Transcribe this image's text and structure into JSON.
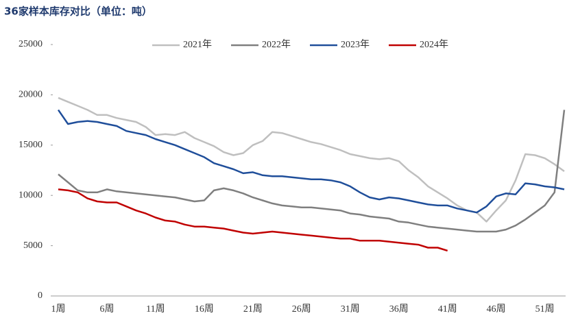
{
  "chart_data": {
    "type": "line",
    "title": "36家样本库存对比（单位：吨）",
    "categories": [
      "1周",
      null,
      null,
      null,
      null,
      "6周",
      null,
      null,
      null,
      null,
      "11周",
      null,
      null,
      null,
      null,
      "16周",
      null,
      null,
      null,
      null,
      "21周",
      null,
      null,
      null,
      null,
      "26周",
      null,
      null,
      null,
      null,
      "31周",
      null,
      null,
      null,
      null,
      "36周",
      null,
      null,
      null,
      null,
      "41周",
      null,
      null,
      null,
      null,
      "46周",
      null,
      null,
      null,
      null,
      "51周",
      null,
      null
    ],
    "series": [
      {
        "name": "2021年",
        "color": "#bfbfbf",
        "values": [
          19700,
          19300,
          18900,
          18500,
          18000,
          18000,
          17700,
          17500,
          17300,
          16800,
          16000,
          16100,
          16000,
          16300,
          15700,
          15300,
          14900,
          14300,
          14000,
          14200,
          15000,
          15400,
          16300,
          16200,
          15900,
          15600,
          15300,
          15100,
          14800,
          14500,
          14100,
          13900,
          13700,
          13600,
          13700,
          13400,
          12500,
          11800,
          10900,
          10300,
          9700,
          9000,
          8500,
          8300,
          7400,
          8500,
          9500,
          11500,
          14100,
          14000,
          13700,
          13100,
          12400
        ]
      },
      {
        "name": "2022年",
        "color": "#7f7f7f",
        "values": [
          12100,
          11300,
          10500,
          10300,
          10300,
          10600,
          10400,
          10300,
          10200,
          10100,
          10000,
          9900,
          9800,
          9600,
          9400,
          9500,
          10500,
          10700,
          10500,
          10200,
          9800,
          9500,
          9200,
          9000,
          8900,
          8800,
          8800,
          8700,
          8600,
          8500,
          8200,
          8100,
          7900,
          7800,
          7700,
          7400,
          7300,
          7100,
          6900,
          6800,
          6700,
          6600,
          6500,
          6400,
          6400,
          6400,
          6600,
          7000,
          7600,
          8300,
          9000,
          10300,
          18500
        ]
      },
      {
        "name": "2023年",
        "color": "#1f4e9a",
        "values": [
          18500,
          17100,
          17300,
          17400,
          17300,
          17100,
          16900,
          16400,
          16200,
          16000,
          15600,
          15300,
          15000,
          14600,
          14200,
          13800,
          13200,
          12900,
          12600,
          12200,
          12300,
          12000,
          11900,
          11900,
          11800,
          11700,
          11600,
          11600,
          11500,
          11300,
          10900,
          10300,
          9800,
          9600,
          9800,
          9700,
          9500,
          9300,
          9100,
          9000,
          9000,
          8700,
          8500,
          8300,
          8900,
          9900,
          10200,
          10100,
          11200,
          11100,
          10900,
          10800,
          10600
        ]
      },
      {
        "name": "2024年",
        "color": "#c00000",
        "values": [
          10600,
          10500,
          10300,
          9700,
          9400,
          9300,
          9300,
          8900,
          8500,
          8200,
          7800,
          7500,
          7400,
          7100,
          6900,
          6900,
          6800,
          6700,
          6500,
          6300,
          6200,
          6300,
          6400,
          6300,
          6200,
          6100,
          6000,
          5900,
          5800,
          5700,
          5700,
          5500,
          5500,
          5500,
          5400,
          5300,
          5200,
          5100,
          4800,
          4800,
          4500,
          null,
          null,
          null,
          null,
          null,
          null,
          null,
          null,
          null,
          null,
          null,
          null
        ]
      }
    ],
    "ylim": [
      0,
      25000
    ],
    "yticks": [
      0,
      5000,
      10000,
      15000,
      20000,
      25000
    ],
    "legend": "top"
  }
}
